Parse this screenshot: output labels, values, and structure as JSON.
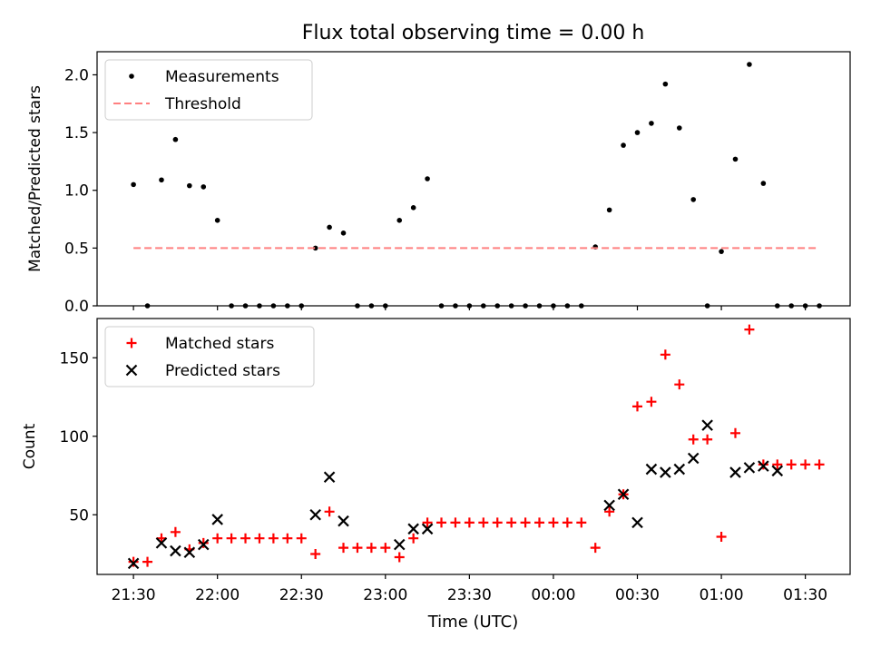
{
  "figure": {
    "title": "Flux total observing time = 0.00 h",
    "xlabel": "Time (UTC)",
    "x_tick_labels": [
      "21:30",
      "22:00",
      "22:30",
      "23:00",
      "23:30",
      "00:00",
      "00:30",
      "01:00",
      "01:30"
    ]
  },
  "chart_data": [
    {
      "type": "scatter",
      "ylabel": "Matched/Predicted stars",
      "x_tick_minutes": [
        1290,
        1320,
        1350,
        1380,
        1410,
        1440,
        1470,
        1500,
        1530
      ],
      "xlim_minutes": [
        1277,
        1546
      ],
      "ylim": [
        0,
        2.2
      ],
      "yticks": [
        0.0,
        0.5,
        1.0,
        1.5,
        2.0
      ],
      "ytick_labels": [
        "0.0",
        "0.5",
        "1.0",
        "1.5",
        "2.0"
      ],
      "legend": {
        "location": "upper left",
        "entries": [
          "Measurements",
          "Threshold"
        ]
      },
      "series": [
        {
          "name": "Measurements",
          "marker": "dot",
          "color": "#000000",
          "x_minutes": [
            1290,
            1295,
            1300,
            1305,
            1310,
            1315,
            1320,
            1325,
            1330,
            1335,
            1340,
            1345,
            1350,
            1355,
            1360,
            1365,
            1370,
            1375,
            1380,
            1385,
            1390,
            1395,
            1400,
            1405,
            1410,
            1415,
            1420,
            1425,
            1430,
            1435,
            1440,
            1445,
            1450,
            1455,
            1460,
            1465,
            1470,
            1475,
            1480,
            1485,
            1490,
            1495,
            1500,
            1505,
            1510,
            1515,
            1520,
            1525,
            1530,
            1535
          ],
          "y": [
            1.05,
            0.0,
            1.09,
            1.44,
            1.04,
            1.03,
            0.74,
            0.0,
            0.0,
            0.0,
            0.0,
            0.0,
            0.0,
            0.5,
            0.68,
            0.63,
            0.0,
            0.0,
            0.0,
            0.74,
            0.85,
            1.1,
            0.0,
            0.0,
            0.0,
            0.0,
            0.0,
            0.0,
            0.0,
            0.0,
            0.0,
            0.0,
            0.0,
            0.51,
            0.83,
            1.39,
            1.5,
            1.58,
            1.92,
            1.54,
            0.92,
            0.0,
            0.47,
            1.27,
            2.09,
            1.06,
            0.0,
            0.0,
            0.0,
            0.0
          ]
        },
        {
          "name": "Threshold",
          "style": "dashed",
          "color": "#ff8080",
          "x_minutes": [
            1290,
            1535
          ],
          "y": [
            0.5,
            0.5
          ]
        }
      ]
    },
    {
      "type": "scatter",
      "ylabel": "Count",
      "x_tick_minutes": [
        1290,
        1320,
        1350,
        1380,
        1410,
        1440,
        1470,
        1500,
        1530
      ],
      "xlim_minutes": [
        1277,
        1546
      ],
      "ylim": [
        12,
        175
      ],
      "yticks": [
        50,
        100,
        150
      ],
      "ytick_labels": [
        "50",
        "100",
        "150"
      ],
      "legend": {
        "location": "upper left",
        "entries": [
          "Matched stars",
          "Predicted stars"
        ]
      },
      "series": [
        {
          "name": "Matched stars",
          "marker": "plus",
          "color": "#ff0000",
          "x_minutes": [
            1290,
            1295,
            1300,
            1305,
            1310,
            1315,
            1320,
            1325,
            1330,
            1335,
            1340,
            1345,
            1350,
            1355,
            1360,
            1365,
            1370,
            1375,
            1380,
            1385,
            1390,
            1395,
            1400,
            1405,
            1410,
            1415,
            1420,
            1425,
            1430,
            1435,
            1440,
            1445,
            1450,
            1455,
            1460,
            1465,
            1470,
            1475,
            1480,
            1485,
            1490,
            1495,
            1500,
            1505,
            1510,
            1515,
            1520,
            1525,
            1530,
            1535
          ],
          "y": [
            20,
            20,
            35,
            39,
            28,
            32,
            35,
            35,
            35,
            35,
            35,
            35,
            35,
            25,
            52,
            29,
            29,
            29,
            29,
            23,
            35,
            45,
            45,
            45,
            45,
            45,
            45,
            45,
            45,
            45,
            45,
            45,
            45,
            29,
            52,
            63,
            119,
            122,
            152,
            133,
            98,
            98,
            36,
            102,
            168,
            82,
            82,
            82,
            82,
            82
          ]
        },
        {
          "name": "Predicted stars",
          "marker": "x",
          "color": "#000000",
          "x_minutes": [
            1290,
            1300,
            1305,
            1310,
            1315,
            1320,
            1355,
            1360,
            1365,
            1385,
            1390,
            1395,
            1460,
            1465,
            1470,
            1475,
            1480,
            1485,
            1490,
            1495,
            1505,
            1510,
            1515,
            1520
          ],
          "y": [
            19,
            32,
            27,
            26,
            31,
            47,
            50,
            74,
            46,
            31,
            41,
            41,
            56,
            63,
            45,
            79,
            77,
            79,
            86,
            107,
            77,
            80,
            81,
            78
          ]
        }
      ]
    }
  ]
}
